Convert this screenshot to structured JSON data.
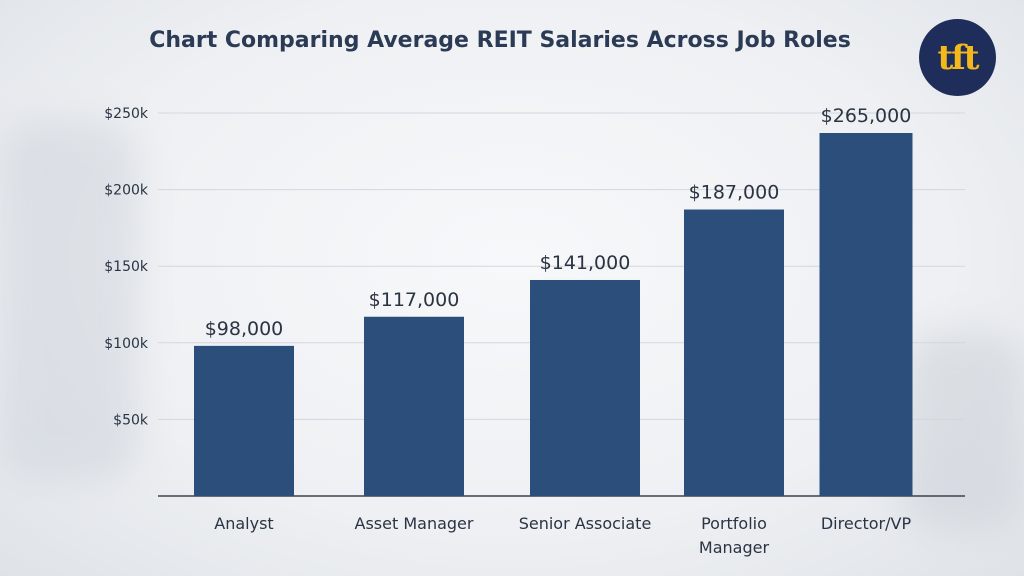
{
  "chart_data": {
    "type": "bar",
    "title": "Chart Comparing Average REIT Salaries Across Job Roles",
    "categories": [
      "Analyst",
      "Asset Manager",
      "Senior Associate",
      "Portfolio Manager",
      "Director/VP"
    ],
    "values": [
      98000,
      117000,
      141000,
      187000,
      265000
    ],
    "data_labels": [
      "$98,000",
      "$117,000",
      "$141,000",
      "$187,000",
      "$265,000"
    ],
    "yticks": [
      50000,
      100000,
      150000,
      200000,
      250000
    ],
    "ytick_labels": [
      "$50k",
      "$100k",
      "$150k",
      "$200k",
      "$250k"
    ],
    "ylim": [
      0,
      250000
    ],
    "grid": true,
    "bar_color": "#2c4e7a"
  },
  "logo": {
    "text": "tft",
    "bg": "#1e2d5a",
    "fg": "#f2b81c"
  }
}
